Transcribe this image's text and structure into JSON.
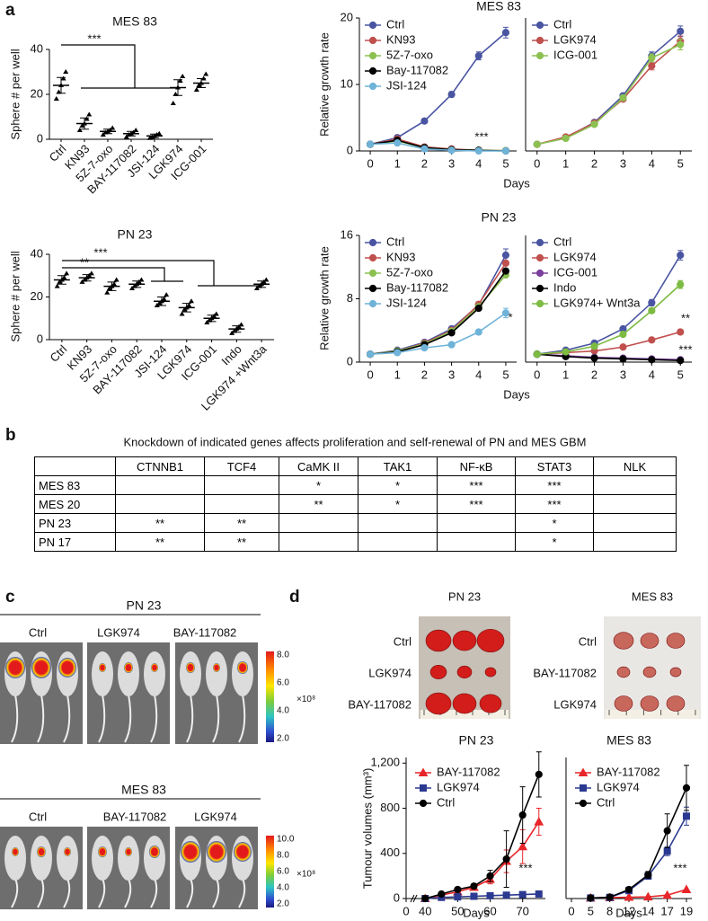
{
  "panel_labels": [
    "a",
    "b",
    "c",
    "d"
  ],
  "chart_data": [
    {
      "type": "dot",
      "title": "MES 83",
      "ylabel": "Sphere # per well",
      "categories": [
        "Ctrl",
        "KN93",
        "5Z-7-oxo",
        "BAY-117082",
        "JSI-124",
        "LGK974",
        "ICG-001"
      ],
      "values": [
        24,
        7,
        3.5,
        2.5,
        1.5,
        23,
        25
      ],
      "errors": [
        3.5,
        2.5,
        1,
        1,
        0.8,
        3.5,
        2
      ],
      "points": [
        [
          18,
          21,
          24,
          27,
          30
        ],
        [
          4,
          6,
          7,
          9,
          11
        ],
        [
          2,
          3,
          3.5,
          4,
          5
        ],
        [
          1,
          2,
          2.5,
          3,
          4
        ],
        [
          0.5,
          1,
          1.5,
          2,
          2.5
        ],
        [
          16,
          20,
          23,
          26,
          28
        ],
        [
          22,
          24,
          25,
          27,
          29
        ]
      ],
      "color": "#000000",
      "ylim": [
        0,
        40
      ],
      "yticks": [
        0,
        20,
        40
      ],
      "annotations": [
        "***"
      ]
    },
    {
      "type": "line",
      "title": "MES 83",
      "xlabel": "Days",
      "ylabel": "Relative growth rate",
      "x": [
        0,
        1,
        2,
        3,
        4,
        5
      ],
      "xlim": [
        -0.4,
        5.4
      ],
      "xticks": [
        0,
        1,
        2,
        3,
        4,
        5
      ],
      "ylim": [
        0,
        20
      ],
      "yticks": [
        0,
        10,
        20
      ],
      "legend": "upper left",
      "series": [
        {
          "name": "Ctrl",
          "color": "#4a55a2",
          "values": [
            1,
            2,
            4.5,
            8.5,
            14.3,
            17.8
          ],
          "errors": [
            0,
            0.1,
            0.2,
            0.4,
            0.6,
            0.8
          ]
        },
        {
          "name": "KN93",
          "color": "#c0504d",
          "values": [
            1,
            1.8,
            0.6,
            0.3,
            0.1,
            0.05
          ]
        },
        {
          "name": "5Z-7-oxo",
          "color": "#8cc152",
          "values": [
            1,
            1.5,
            0.5,
            0.2,
            0.1,
            0.05
          ]
        },
        {
          "name": "Bay-117082",
          "color": "#000000",
          "values": [
            1,
            1.6,
            0.5,
            0.2,
            0.1,
            0
          ]
        },
        {
          "name": "JSI-124",
          "color": "#6fb3d9",
          "values": [
            1,
            1.2,
            0.3,
            0.1,
            0,
            0
          ]
        }
      ],
      "annotations": [
        "***"
      ]
    },
    {
      "type": "line",
      "x": [
        0,
        1,
        2,
        3,
        4,
        5
      ],
      "xlim": [
        -0.4,
        5.4
      ],
      "xticks": [
        0,
        1,
        2,
        3,
        4,
        5
      ],
      "ylim": [
        0,
        20
      ],
      "legend": "upper left",
      "series": [
        {
          "name": "Ctrl",
          "color": "#4a55a2",
          "values": [
            1,
            2,
            4.3,
            8.3,
            14.3,
            18
          ],
          "errors": [
            0,
            0.1,
            0.2,
            0.3,
            0.6,
            0.8
          ]
        },
        {
          "name": "LGK974",
          "color": "#c0504d",
          "values": [
            1,
            2.1,
            4.2,
            7.8,
            12.8,
            16.5
          ],
          "errors": [
            0,
            0.1,
            0.2,
            0.3,
            0.6,
            0.8
          ]
        },
        {
          "name": "ICG-001",
          "color": "#8cc152",
          "values": [
            1,
            1.9,
            4,
            8,
            14,
            16
          ],
          "errors": [
            0,
            0.1,
            0.2,
            0.3,
            0.6,
            0.8
          ]
        }
      ]
    },
    {
      "type": "dot",
      "title": "PN 23",
      "ylabel": "Sphere # per well",
      "categories": [
        "Ctrl",
        "KN93",
        "5Z-7-oxo",
        "BAY-117082",
        "JSI-124",
        "LGK974",
        "ICG-001",
        "Indo",
        "LGK974 +Wnt3a"
      ],
      "values": [
        28,
        29,
        25,
        26,
        18,
        15,
        10,
        5,
        26
      ],
      "errors": [
        2,
        1.5,
        2,
        1.5,
        2,
        2,
        1.5,
        1.5,
        1.5
      ],
      "points": [
        [
          25,
          27,
          28,
          29,
          31
        ],
        [
          27,
          28,
          29,
          30,
          31
        ],
        [
          22,
          24,
          25,
          26,
          28
        ],
        [
          24,
          25,
          26,
          27,
          28
        ],
        [
          16,
          17,
          18,
          19,
          21
        ],
        [
          12,
          14,
          15,
          16,
          18
        ],
        [
          8,
          9,
          10,
          11,
          12
        ],
        [
          3,
          4,
          5,
          6,
          7
        ],
        [
          24,
          25,
          26,
          27,
          28
        ]
      ],
      "color": "#000000",
      "ylim": [
        0,
        40
      ],
      "yticks": [
        0,
        20,
        40
      ],
      "annotations": [
        "***",
        "**"
      ]
    },
    {
      "type": "line",
      "title": "PN 23",
      "xlabel": "Days",
      "ylabel": "Relative growth rate",
      "x": [
        0,
        1,
        2,
        3,
        4,
        5
      ],
      "xlim": [
        -0.4,
        5.4
      ],
      "xticks": [
        0,
        1,
        2,
        3,
        4,
        5
      ],
      "ylim": [
        0,
        16
      ],
      "yticks": [
        0,
        8,
        16
      ],
      "legend": "upper left",
      "series": [
        {
          "name": "Ctrl",
          "color": "#4a55a2",
          "values": [
            1,
            1.5,
            2.5,
            4.2,
            7.2,
            13.5
          ],
          "errors": [
            0,
            0.1,
            0.1,
            0.2,
            0.4,
            0.8
          ]
        },
        {
          "name": "KN93",
          "color": "#c0504d",
          "values": [
            1,
            1.4,
            2.4,
            4,
            7.3,
            12.5
          ]
        },
        {
          "name": "5Z-7-oxo",
          "color": "#8cc152",
          "values": [
            1,
            1.4,
            2.3,
            3.9,
            7,
            11
          ]
        },
        {
          "name": "Bay-117082",
          "color": "#000000",
          "values": [
            1,
            1.3,
            2.2,
            3.7,
            6.8,
            11.5
          ]
        },
        {
          "name": "JSI-124",
          "color": "#6fb3d9",
          "values": [
            1,
            1.2,
            1.8,
            2.2,
            3.8,
            6.2
          ],
          "errors": [
            0,
            0.1,
            0.1,
            0.2,
            0.3,
            0.6
          ]
        }
      ],
      "annotations": [
        "*"
      ]
    },
    {
      "type": "line",
      "x": [
        0,
        1,
        2,
        3,
        4,
        5
      ],
      "xlim": [
        -0.4,
        5.4
      ],
      "xticks": [
        0,
        1,
        2,
        3,
        4,
        5
      ],
      "ylim": [
        0,
        16
      ],
      "legend": "upper left",
      "series": [
        {
          "name": "Ctrl",
          "color": "#4a55a2",
          "values": [
            1,
            1.5,
            2.4,
            4.2,
            7.5,
            13.5
          ],
          "errors": [
            0,
            0.1,
            0.1,
            0.2,
            0.4,
            0.6
          ]
        },
        {
          "name": "LGK974",
          "color": "#c0504d",
          "values": [
            1,
            1.2,
            1.4,
            1.9,
            2.8,
            3.8
          ],
          "errors": [
            0,
            0.1,
            0.1,
            0.1,
            0.2,
            0.3
          ]
        },
        {
          "name": "ICG-001",
          "color": "#7b3f9e",
          "values": [
            1,
            0.8,
            0.6,
            0.5,
            0.4,
            0.3
          ]
        },
        {
          "name": "Indo",
          "color": "#000000",
          "values": [
            1,
            0.7,
            0.5,
            0.4,
            0.3,
            0.2
          ]
        },
        {
          "name": "LGK974+ Wnt3a",
          "color": "#7dbb42",
          "values": [
            1,
            1.3,
            2,
            3.5,
            6.5,
            9.8
          ],
          "errors": [
            0,
            0.1,
            0.1,
            0.2,
            0.3,
            0.5
          ]
        }
      ],
      "annotations": [
        "**",
        "***"
      ]
    },
    {
      "type": "line",
      "title": "PN 23",
      "xlabel": "Days",
      "ylabel": "Tumour volumes (mm³)",
      "x": [
        40,
        45,
        50,
        55,
        60,
        65,
        70,
        75
      ],
      "xlim": [
        0,
        77
      ],
      "axis_break": [
        0,
        38
      ],
      "xticks": [
        0,
        40,
        50,
        60,
        70
      ],
      "ylim": [
        0,
        1250
      ],
      "yticks": [
        0,
        400,
        800,
        {
          "value": 1200,
          "label": "1,200"
        }
      ],
      "legend": "upper left",
      "series": [
        {
          "name": "BAY-117082",
          "color": "#e8262a",
          "marker": "triangle",
          "values": [
            0,
            30,
            60,
            100,
            170,
            330,
            460,
            680
          ],
          "errors": [
            0,
            10,
            10,
            20,
            40,
            100,
            150,
            120
          ]
        },
        {
          "name": "LGK974",
          "color": "#2b3990",
          "marker": "square",
          "values": [
            0,
            10,
            15,
            20,
            25,
            30,
            35,
            40
          ]
        },
        {
          "name": "Ctrl",
          "color": "#000000",
          "marker": "circle",
          "values": [
            0,
            40,
            80,
            110,
            200,
            350,
            740,
            1100
          ],
          "errors": [
            0,
            10,
            15,
            20,
            50,
            250,
            250,
            200
          ]
        }
      ],
      "annotations": [
        "***"
      ]
    },
    {
      "type": "line",
      "title": "MES 83",
      "xlabel": "Days",
      "categories": [
        "0",
        "5",
        "8",
        "12",
        "14",
        "17",
        "19"
      ],
      "ylim": [
        0,
        1250
      ],
      "legend": "upper left",
      "series": [
        {
          "name": "BAY-117082",
          "color": "#e8262a",
          "marker": "triangle",
          "values": [
            null,
            5,
            8,
            12,
            15,
            30,
            80
          ]
        },
        {
          "name": "LGK974",
          "color": "#2b3990",
          "marker": "square",
          "values": [
            null,
            5,
            10,
            70,
            200,
            420,
            730
          ],
          "errors": [
            null,
            0,
            5,
            15,
            30,
            40,
            80
          ]
        },
        {
          "name": "Ctrl",
          "color": "#000000",
          "marker": "circle",
          "values": [
            null,
            5,
            12,
            80,
            210,
            600,
            980
          ],
          "errors": [
            null,
            0,
            5,
            20,
            30,
            150,
            200
          ]
        }
      ],
      "annotations": [
        "***"
      ]
    }
  ],
  "table": {
    "title": "Knockdown of indicated genes affects proliferation and self-renewal of PN and MES GBM",
    "columns": [
      "CTNNB1",
      "TCF4",
      "CaMK II",
      "TAK1",
      "NF-κB",
      "STAT3",
      "NLK"
    ],
    "rows": [
      {
        "name": "MES 83",
        "cells": [
          null,
          null,
          "*",
          "*",
          "***",
          "***",
          null
        ]
      },
      {
        "name": "MES 20",
        "cells": [
          null,
          null,
          "**",
          "*",
          "***",
          "***",
          null
        ]
      },
      {
        "name": "PN 23",
        "cells": [
          "**",
          "**",
          null,
          null,
          null,
          "*",
          null
        ]
      },
      {
        "name": "PN 17",
        "cells": [
          "**",
          "**",
          null,
          null,
          null,
          "*",
          null
        ]
      }
    ]
  },
  "imaging": {
    "groups": [
      {
        "title": "PN 23",
        "labels": [
          "Ctrl",
          "LGK974",
          "BAY-117082"
        ],
        "colorbar_ticks": [
          "8.0",
          "6.0",
          "4.0",
          "2.0"
        ],
        "scale_label": "×10⁸"
      },
      {
        "title": "MES 83",
        "labels": [
          "Ctrl",
          "BAY-117082",
          "LGK974"
        ],
        "colorbar_ticks": [
          "10.0",
          "8.0",
          "6.0",
          "4.0",
          "2.0"
        ],
        "scale_label": "×10⁸"
      }
    ]
  },
  "tumour_photos": {
    "groups": [
      {
        "title": "PN 23",
        "labels": [
          "Ctrl",
          "LGK974",
          "BAY-117082"
        ]
      },
      {
        "title": "MES 83",
        "labels": [
          "Ctrl",
          "BAY-117082",
          "LGK974"
        ]
      }
    ]
  }
}
